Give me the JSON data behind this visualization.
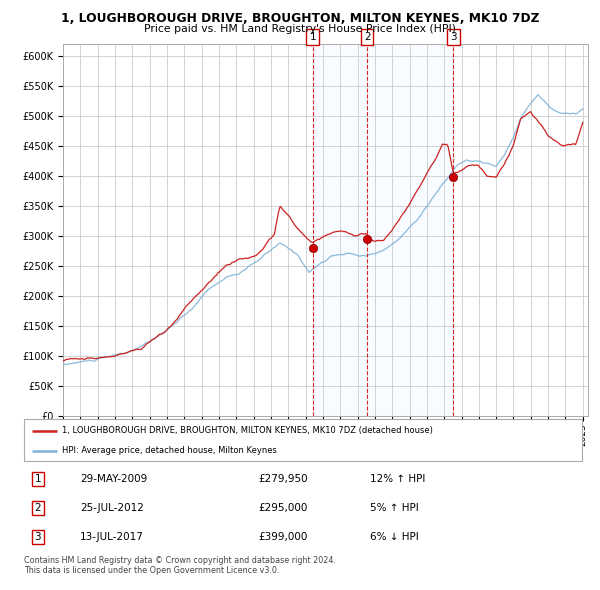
{
  "title_line1": "1, LOUGHBOROUGH DRIVE, BROUGHTON, MILTON KEYNES, MK10 7DZ",
  "title_line2": "Price paid vs. HM Land Registry's House Price Index (HPI)",
  "ylim": [
    0,
    620000
  ],
  "yticks": [
    0,
    50000,
    100000,
    150000,
    200000,
    250000,
    300000,
    350000,
    400000,
    450000,
    500000,
    550000,
    600000
  ],
  "ytick_labels": [
    "£0",
    "£50K",
    "£100K",
    "£150K",
    "£200K",
    "£250K",
    "£300K",
    "£350K",
    "£400K",
    "£450K",
    "£500K",
    "£550K",
    "£600K"
  ],
  "sale_dates_num": [
    2009.41,
    2012.56,
    2017.53
  ],
  "sale_prices": [
    279950,
    295000,
    399000
  ],
  "sale_labels": [
    "1",
    "2",
    "3"
  ],
  "vline_color": "#cc0000",
  "sale_marker_color": "#cc0000",
  "hpi_line_color": "#7eb3d8",
  "price_line_color": "#cc2222",
  "shade_color": "#ddeeff",
  "legend_line1": "1, LOUGHBOROUGH DRIVE, BROUGHTON, MILTON KEYNES, MK10 7DZ (detached house)",
  "legend_line2": "HPI: Average price, detached house, Milton Keynes",
  "table_rows": [
    [
      "1",
      "29-MAY-2009",
      "£279,950",
      "12% ↑ HPI"
    ],
    [
      "2",
      "25-JUL-2012",
      "£295,000",
      "5% ↑ HPI"
    ],
    [
      "3",
      "13-JUL-2017",
      "£399,000",
      "6% ↓ HPI"
    ]
  ],
  "footnote1": "Contains HM Land Registry data © Crown copyright and database right 2024.",
  "footnote2": "This data is licensed under the Open Government Licence v3.0.",
  "bg_color": "#ffffff",
  "grid_color": "#cccccc"
}
